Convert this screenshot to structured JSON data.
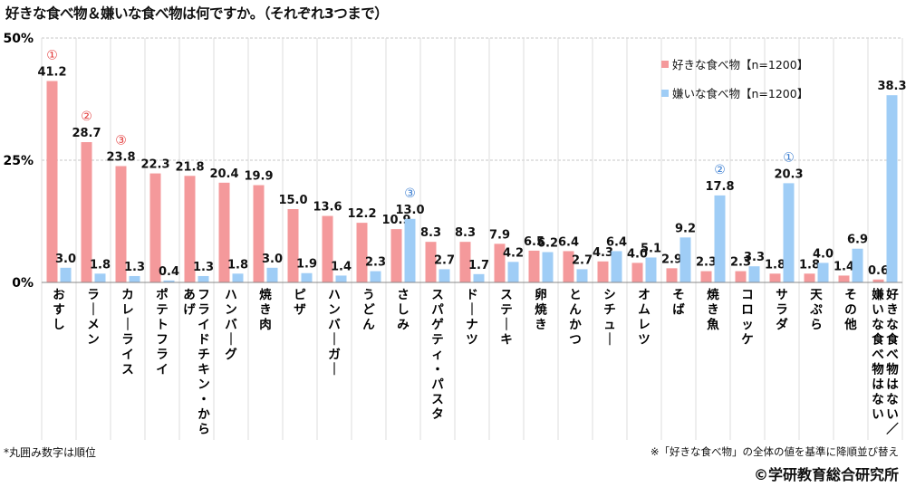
{
  "title": "好きな食べ物＆嫌いな食べ物は何ですか。（それぞれ3つまで）",
  "note_left": "*丸囲み数字は順位",
  "note_right": "※「好きな食べ物」の全体の値を基準に降順並び替え",
  "copyright": "©学研教育総合研究所",
  "colors": {
    "like": "#f4999b",
    "dislike": "#9fcdf6",
    "like_rank": "#e33d3d",
    "dislike_rank": "#3c7fd2",
    "grid": "#c7c7c7"
  },
  "chart_data": {
    "type": "bar",
    "ylim": [
      0,
      50
    ],
    "yticks": [
      "0%",
      "25%",
      "50%"
    ],
    "grid": true,
    "legend_position": "top-right",
    "categories": [
      "おすし",
      "ラーメン",
      "カレーライス",
      "ポテトフライ",
      "フライドチキン・からあげ",
      "ハンバーグ",
      "焼き肉",
      "ピザ",
      "ハンバーガー",
      "うどん",
      "さしみ",
      "スパゲティ・パスタ",
      "ドーナツ",
      "ステーキ",
      "卵焼き",
      "とんかつ",
      "シチュー",
      "オムレツ",
      "そば",
      "焼き魚",
      "コロッケ",
      "サラダ",
      "天ぷら",
      "その他",
      "好きな食べ物はない／嫌いな食べ物はない"
    ],
    "series": [
      {
        "name": "好きな食べ物【n=1200】",
        "values": [
          41.2,
          28.7,
          23.8,
          22.3,
          21.8,
          20.4,
          19.9,
          15.0,
          13.6,
          12.2,
          10.9,
          8.3,
          8.3,
          7.9,
          6.5,
          6.4,
          4.3,
          4.0,
          2.9,
          2.3,
          2.3,
          1.8,
          1.8,
          1.4,
          0.6
        ],
        "labels": [
          "41.2",
          "28.7",
          "23.8",
          "22.3",
          "21.8",
          "20.4",
          "19.9",
          "15.0",
          "13.6",
          "12.2",
          "10.9",
          "8.3",
          "8.3",
          "7.9",
          "6.5",
          "6.4",
          "4.3",
          "4.0",
          "2.9",
          "2.3",
          "2.3",
          "1.8",
          "1.8",
          "1.4",
          "0.6"
        ]
      },
      {
        "name": "嫌いな食べ物【n=1200】",
        "values": [
          3.0,
          1.8,
          1.3,
          0.4,
          1.3,
          1.8,
          3.0,
          1.9,
          1.4,
          2.3,
          13.0,
          2.7,
          1.7,
          4.2,
          6.2,
          2.7,
          6.4,
          5.1,
          9.2,
          17.8,
          3.3,
          20.3,
          4.0,
          6.9,
          38.3
        ],
        "labels": [
          "3.0",
          "1.8",
          "1.3",
          "0.4",
          "1.3",
          "1.8",
          "3.0",
          "1.9",
          "1.4",
          "2.3",
          "13.0",
          "2.7",
          "1.7",
          "4.2",
          "6.2",
          "2.7",
          "6.4",
          "5.1",
          "9.2",
          "17.8",
          "3.3",
          "20.3",
          "4.0",
          "6.9",
          "38.3"
        ]
      }
    ],
    "rank_marks": [
      {
        "series": 0,
        "index": 0,
        "mark": "①"
      },
      {
        "series": 0,
        "index": 1,
        "mark": "②"
      },
      {
        "series": 0,
        "index": 2,
        "mark": "③"
      },
      {
        "series": 1,
        "index": 24,
        "mark": ""
      },
      {
        "series": 1,
        "index": 21,
        "mark": "①"
      },
      {
        "series": 1,
        "index": 19,
        "mark": "②"
      },
      {
        "series": 1,
        "index": 10,
        "mark": "③"
      }
    ]
  }
}
